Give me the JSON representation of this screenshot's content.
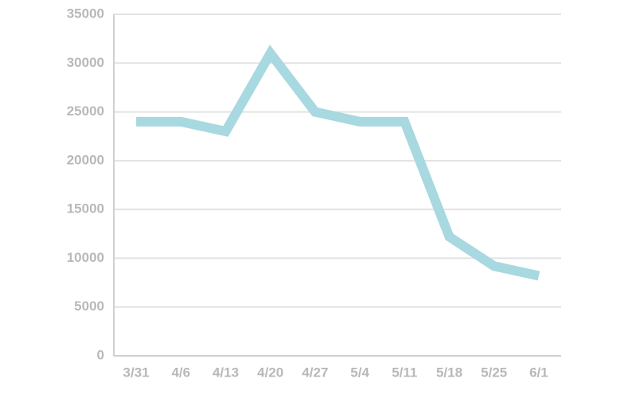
{
  "chart_data": {
    "type": "line",
    "categories": [
      "3/31",
      "4/6",
      "4/13",
      "4/20",
      "4/27",
      "5/4",
      "5/11",
      "5/18",
      "5/25",
      "6/1"
    ],
    "series": [
      {
        "name": null,
        "color": "#a8d8e0",
        "values": [
          24000,
          24000,
          23000,
          31000,
          25000,
          24000,
          24000,
          12200,
          9200,
          8200
        ]
      }
    ],
    "ylim": [
      0,
      35000
    ],
    "yticks": [
      0,
      5000,
      10000,
      15000,
      20000,
      25000,
      30000,
      35000
    ],
    "grid": true
  }
}
